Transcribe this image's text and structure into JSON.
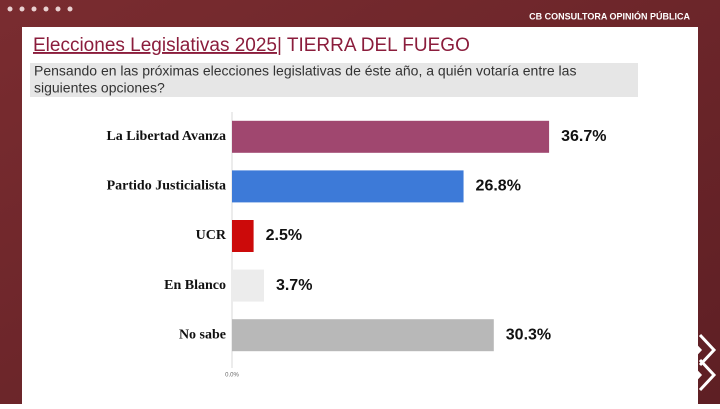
{
  "header": "CB CONSULTORA OPINIÓN PÚBLICA",
  "chart_data": {
    "type": "bar",
    "orientation": "horizontal",
    "title": "Elecciones Legislativas 2025",
    "title_region": "| TIERRA DEL FUEGO",
    "subtitle": [
      "Pensando en las próximas elecciones legislativas de éste año, a quién votaría entre las",
      "siguientes opciones?"
    ],
    "categories": [
      "La Libertad Avanza",
      "Partido Justicialista",
      "UCR",
      "En Blanco",
      "No sabe"
    ],
    "values": [
      36.7,
      26.8,
      2.5,
      3.7,
      30.3
    ],
    "value_labels": [
      "36.7%",
      "26.8%",
      "2.5%",
      "3.7%",
      "30.3%"
    ],
    "colors": [
      "#a0476f",
      "#3d7ad8",
      "#cc0a0a",
      "#ececec",
      "#b8b8b8"
    ],
    "xlim": [
      0,
      50
    ],
    "xticks": [
      {
        "value": 0,
        "label": "0.0%"
      }
    ]
  }
}
